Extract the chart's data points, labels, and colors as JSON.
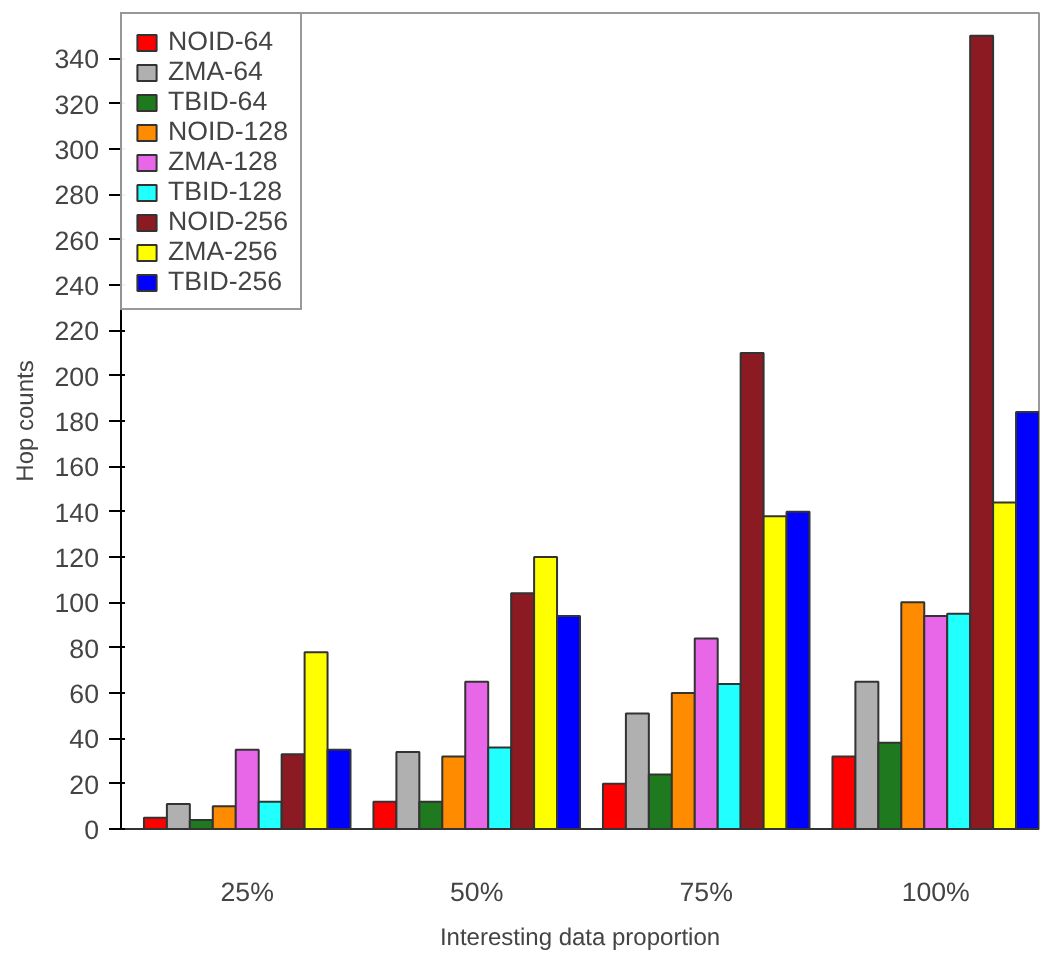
{
  "chart_data": {
    "type": "bar",
    "xlabel": "Interesting data proportion",
    "ylabel": "Hop counts",
    "categories": [
      "25%",
      "50%",
      "75%",
      "100%"
    ],
    "ylim": [
      0,
      360
    ],
    "yticks": [
      0,
      20,
      40,
      60,
      80,
      100,
      120,
      140,
      160,
      180,
      200,
      220,
      240,
      260,
      280,
      300,
      320,
      340
    ],
    "grid": false,
    "legend": "top left",
    "series": [
      {
        "name": "NOID-64",
        "color": "#ff0000",
        "values": [
          5,
          12,
          20,
          32
        ]
      },
      {
        "name": "ZMA-64",
        "color": "#b0b0b0",
        "values": [
          11,
          34,
          51,
          65
        ]
      },
      {
        "name": "TBID-64",
        "color": "#1f7a1f",
        "values": [
          4,
          12,
          24,
          38
        ]
      },
      {
        "name": "NOID-128",
        "color": "#ff8c00",
        "values": [
          10,
          32,
          60,
          100
        ]
      },
      {
        "name": "ZMA-128",
        "color": "#e866e8",
        "values": [
          35,
          65,
          84,
          94
        ]
      },
      {
        "name": "TBID-128",
        "color": "#22ffff",
        "values": [
          12,
          36,
          64,
          95
        ]
      },
      {
        "name": "NOID-256",
        "color": "#8b1a22",
        "values": [
          33,
          104,
          210,
          350
        ]
      },
      {
        "name": "ZMA-256",
        "color": "#ffff00",
        "values": [
          78,
          120,
          138,
          144
        ]
      },
      {
        "name": "TBID-256",
        "color": "#0000ff",
        "values": [
          35,
          94,
          140,
          184
        ]
      }
    ]
  }
}
